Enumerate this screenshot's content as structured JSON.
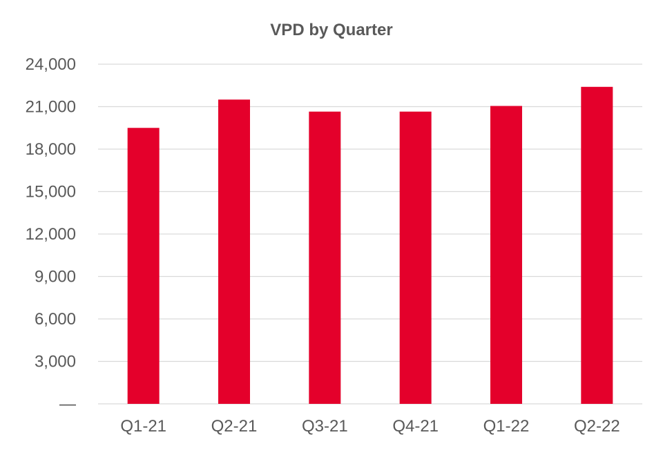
{
  "chart_data": {
    "type": "bar",
    "title": "VPD by Quarter",
    "xlabel": "",
    "ylabel": "",
    "categories": [
      "Q1-21",
      "Q2-21",
      "Q3-21",
      "Q4-21",
      "Q1-22",
      "Q2-22"
    ],
    "series": [
      {
        "values": [
          19500,
          21500,
          20650,
          20650,
          21050,
          22400
        ],
        "color": "#e4002b"
      }
    ],
    "ylim": [
      0,
      24000
    ],
    "yticks": [
      0,
      3000,
      6000,
      9000,
      12000,
      15000,
      18000,
      21000,
      24000
    ],
    "ytick_labels": [
      "—",
      "3,000",
      "6,000",
      "9,000",
      "12,000",
      "15,000",
      "18,000",
      "21,000",
      "24,000"
    ],
    "grid": true,
    "legend": "none"
  }
}
